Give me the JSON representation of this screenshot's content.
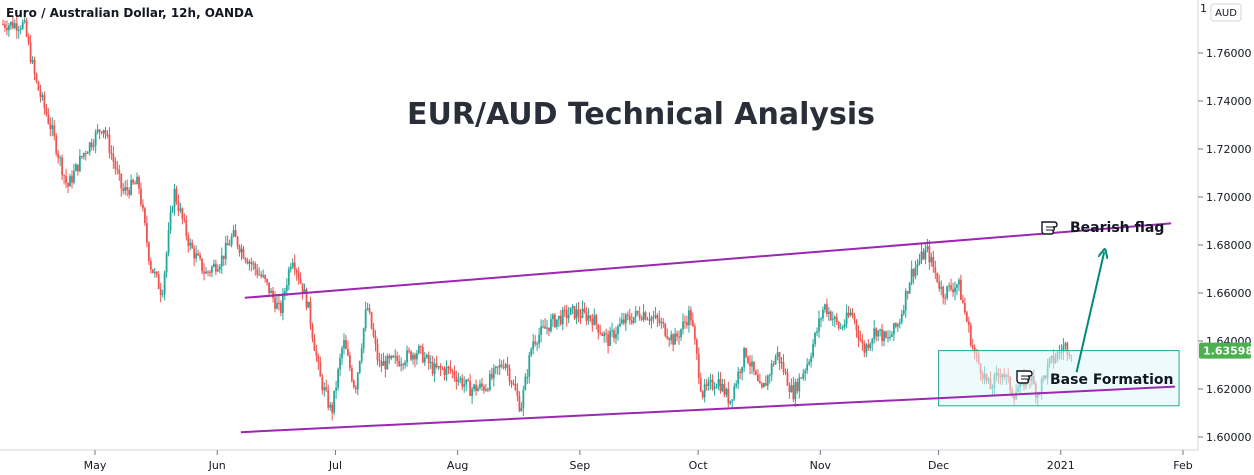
{
  "chart_data": {
    "type": "candlestick",
    "symbol_title": "Euro / Australian Dollar, 12h, OANDA",
    "title": "EUR/AUD Technical Analysis",
    "currency": "AUD",
    "last_price": "1.63598",
    "ylim": [
      1.595,
      1.78
    ],
    "y_ticks": [
      "1.60000",
      "1.62000",
      "1.64000",
      "1.66000",
      "1.68000",
      "1.70000",
      "1.72000",
      "1.74000",
      "1.76000"
    ],
    "top_tick": "1",
    "x_ticks": [
      "May",
      "Jun",
      "Jul",
      "Aug",
      "Sep",
      "Oct",
      "Nov",
      "Dec",
      "2021",
      "Feb"
    ],
    "price_path": [
      [
        "2020-04-13",
        1.772
      ],
      [
        "2020-04-16",
        1.748
      ],
      [
        "2020-04-20",
        1.728
      ],
      [
        "2020-04-24",
        1.704
      ],
      [
        "2020-04-28",
        1.718
      ],
      [
        "2020-05-03",
        1.73
      ],
      [
        "2020-05-08",
        1.702
      ],
      [
        "2020-05-12",
        1.706
      ],
      [
        "2020-05-15",
        1.672
      ],
      [
        "2020-05-18",
        1.66
      ],
      [
        "2020-05-21",
        1.703
      ],
      [
        "2020-05-25",
        1.68
      ],
      [
        "2020-05-29",
        1.668
      ],
      [
        "2020-06-02",
        1.674
      ],
      [
        "2020-06-05",
        1.684
      ],
      [
        "2020-06-08",
        1.676
      ],
      [
        "2020-06-13",
        1.665
      ],
      [
        "2020-06-17",
        1.652
      ],
      [
        "2020-06-20",
        1.676
      ],
      [
        "2020-06-24",
        1.655
      ],
      [
        "2020-06-27",
        1.625
      ],
      [
        "2020-06-30",
        1.61
      ],
      [
        "2020-07-03",
        1.64
      ],
      [
        "2020-07-06",
        1.62
      ],
      [
        "2020-07-09",
        1.655
      ],
      [
        "2020-07-12",
        1.63
      ],
      [
        "2020-07-17",
        1.632
      ],
      [
        "2020-07-22",
        1.636
      ],
      [
        "2020-07-26",
        1.628
      ],
      [
        "2020-07-30",
        1.628
      ],
      [
        "2020-08-04",
        1.62
      ],
      [
        "2020-08-08",
        1.621
      ],
      [
        "2020-08-13",
        1.632
      ],
      [
        "2020-08-17",
        1.612
      ],
      [
        "2020-08-20",
        1.64
      ],
      [
        "2020-08-25",
        1.648
      ],
      [
        "2020-08-30",
        1.652
      ],
      [
        "2020-09-04",
        1.65
      ],
      [
        "2020-09-08",
        1.64
      ],
      [
        "2020-09-12",
        1.648
      ],
      [
        "2020-09-17",
        1.652
      ],
      [
        "2020-09-21",
        1.648
      ],
      [
        "2020-09-25",
        1.64
      ],
      [
        "2020-09-29",
        1.652
      ],
      [
        "2020-10-02",
        1.618
      ],
      [
        "2020-10-06",
        1.624
      ],
      [
        "2020-10-09",
        1.615
      ],
      [
        "2020-10-13",
        1.636
      ],
      [
        "2020-10-17",
        1.618
      ],
      [
        "2020-10-21",
        1.635
      ],
      [
        "2020-10-25",
        1.618
      ],
      [
        "2020-10-29",
        1.632
      ],
      [
        "2020-11-02",
        1.655
      ],
      [
        "2020-11-06",
        1.645
      ],
      [
        "2020-11-09",
        1.652
      ],
      [
        "2020-11-12",
        1.636
      ],
      [
        "2020-11-15",
        1.645
      ],
      [
        "2020-11-18",
        1.64
      ],
      [
        "2020-11-21",
        1.648
      ],
      [
        "2020-11-24",
        1.668
      ],
      [
        "2020-11-28",
        1.678
      ],
      [
        "2020-12-02",
        1.66
      ],
      [
        "2020-12-06",
        1.664
      ],
      [
        "2020-12-10",
        1.635
      ],
      [
        "2020-12-14",
        1.62
      ],
      [
        "2020-12-17",
        1.628
      ],
      [
        "2020-12-20",
        1.618
      ],
      [
        "2020-12-24",
        1.626
      ],
      [
        "2020-12-26",
        1.618
      ],
      [
        "2020-12-29",
        1.63
      ],
      [
        "2021-01-02",
        1.638
      ],
      [
        "2021-01-04",
        1.636
      ]
    ],
    "annotations": {
      "upper_trendline": [
        [
          "2020-06-08",
          1.658
        ],
        [
          "2021-01-29",
          1.689
        ]
      ],
      "lower_trendline": [
        [
          "2020-06-07",
          1.602
        ],
        [
          "2021-01-30",
          1.621
        ]
      ],
      "base_box": {
        "from": "2020-12-01",
        "to": "2021-01-31",
        "top": 1.636,
        "bottom": 1.613
      },
      "arrow": [
        [
          "2021-01-05",
          1.627
        ],
        [
          "2021-01-12",
          1.677
        ]
      ],
      "labels": [
        {
          "text": "Bearish flag",
          "date": "2021-01-31",
          "price": 1.689
        },
        {
          "text": "Base Formation",
          "date": "2021-01-31",
          "price": 1.623
        }
      ]
    },
    "colors": {
      "up": "#26a69a",
      "down": "#ef5350",
      "trendline": "#9c27b0",
      "box_fill": "#e0f7fa",
      "box_stroke": "#26a69a",
      "arrow": "#008b7a",
      "price_tag": "#4caf50",
      "axis": "#787b86",
      "text": "#131722"
    }
  }
}
